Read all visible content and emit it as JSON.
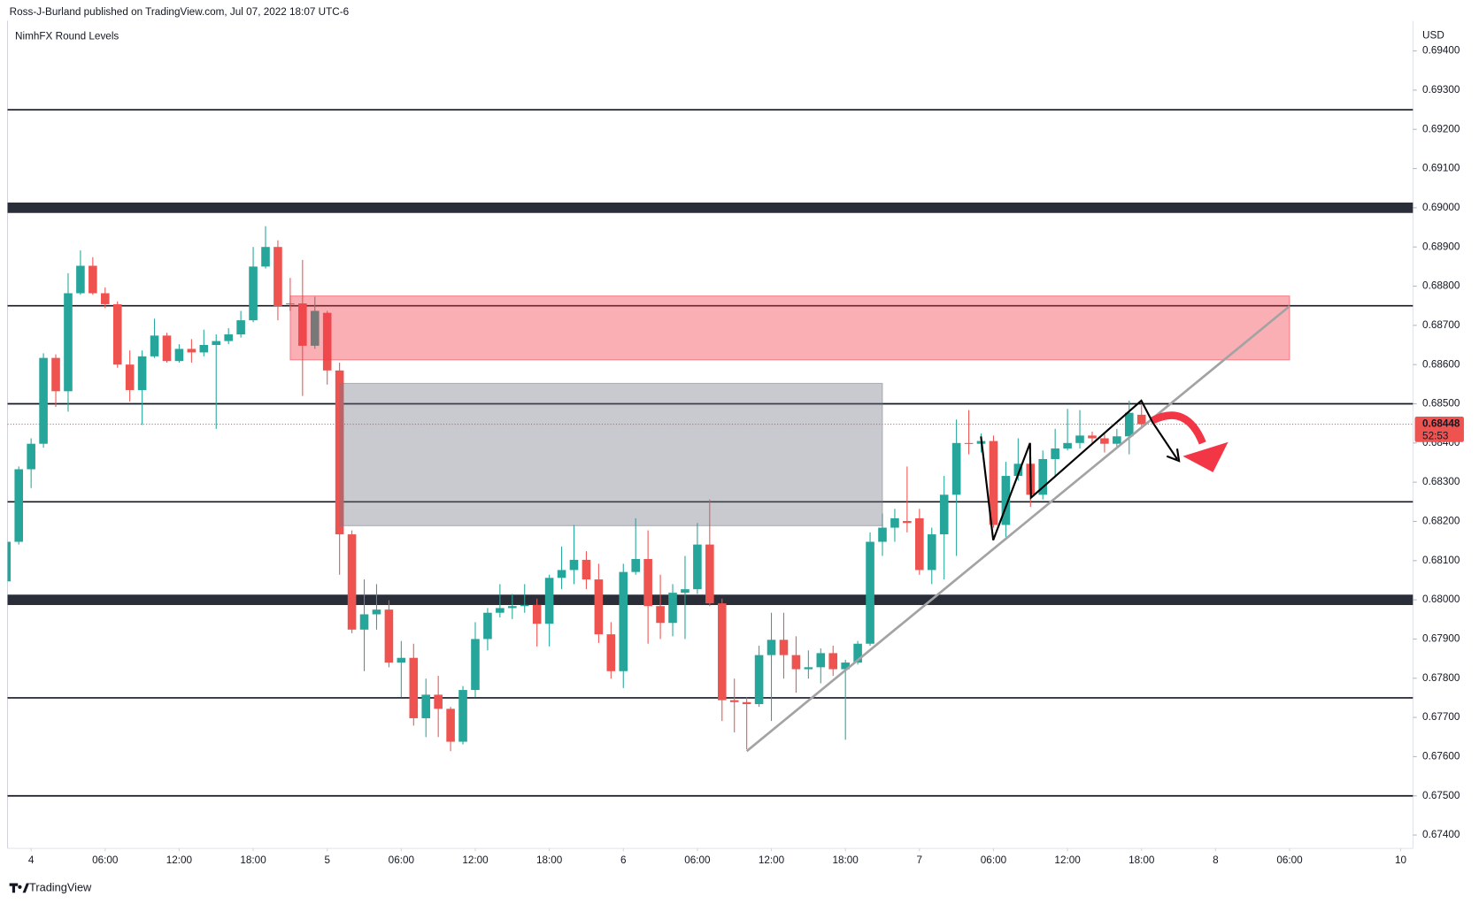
{
  "header": "Ross-J-Burland published on TradingView.com, Jul 07, 2022 18:07 UTC-6",
  "footer": "TradingView",
  "chart_data": {
    "type": "candlestick",
    "title": "NimhFX Round Levels",
    "y_axis_label": "USD",
    "xlim": [
      -1.91,
      112
    ],
    "ylim": [
      0.67366,
      0.69477
    ],
    "xticks": [
      {
        "value": 0,
        "label": "4"
      },
      {
        "value": 6,
        "label": "06:00"
      },
      {
        "value": 12,
        "label": "12:00"
      },
      {
        "value": 18,
        "label": "18:00"
      },
      {
        "value": 24,
        "label": "5"
      },
      {
        "value": 30,
        "label": "06:00"
      },
      {
        "value": 36,
        "label": "12:00"
      },
      {
        "value": 42,
        "label": "18:00"
      },
      {
        "value": 48,
        "label": "6"
      },
      {
        "value": 54,
        "label": "06:00"
      },
      {
        "value": 60,
        "label": "12:00"
      },
      {
        "value": 66,
        "label": "18:00"
      },
      {
        "value": 72,
        "label": "7"
      },
      {
        "value": 78,
        "label": "06:00"
      },
      {
        "value": 84,
        "label": "12:00"
      },
      {
        "value": 90,
        "label": "18:00"
      },
      {
        "value": 96,
        "label": "8"
      },
      {
        "value": 102,
        "label": "06:00"
      },
      {
        "value": 111,
        "label": "10"
      }
    ],
    "yticks": [
      {
        "value": 0.674,
        "label": "0.67400"
      },
      {
        "value": 0.675,
        "label": "0.67500"
      },
      {
        "value": 0.676,
        "label": "0.67600"
      },
      {
        "value": 0.677,
        "label": "0.67700"
      },
      {
        "value": 0.678,
        "label": "0.67800"
      },
      {
        "value": 0.679,
        "label": "0.67900"
      },
      {
        "value": 0.68,
        "label": "0.68000"
      },
      {
        "value": 0.681,
        "label": "0.68100"
      },
      {
        "value": 0.682,
        "label": "0.68200"
      },
      {
        "value": 0.683,
        "label": "0.68300"
      },
      {
        "value": 0.684,
        "label": "0.68400"
      },
      {
        "value": 0.685,
        "label": "0.68500"
      },
      {
        "value": 0.686,
        "label": "0.68600"
      },
      {
        "value": 0.687,
        "label": "0.68700"
      },
      {
        "value": 0.688,
        "label": "0.68800"
      },
      {
        "value": 0.689,
        "label": "0.68900"
      },
      {
        "value": 0.69,
        "label": "0.69000"
      },
      {
        "value": 0.691,
        "label": "0.69100"
      },
      {
        "value": 0.692,
        "label": "0.69200"
      },
      {
        "value": 0.693,
        "label": "0.69300"
      },
      {
        "value": 0.694,
        "label": "0.69400"
      }
    ],
    "up_color": "#26a69a",
    "down_color": "#ef5350",
    "series": {
      "x": [
        -2,
        -1,
        0,
        1,
        2,
        3,
        4,
        5,
        6,
        7,
        8,
        9,
        10,
        11,
        12,
        13,
        14,
        15,
        16,
        17,
        18,
        19,
        20,
        21,
        22,
        23,
        24,
        25,
        26,
        27,
        28,
        29,
        30,
        31,
        32,
        33,
        34,
        35,
        36,
        37,
        38,
        39,
        40,
        41,
        42,
        43,
        44,
        45,
        46,
        47,
        48,
        49,
        50,
        51,
        52,
        53,
        54,
        55,
        56,
        57,
        58,
        59,
        60,
        61,
        62,
        63,
        64,
        65,
        66,
        67,
        68,
        69,
        70,
        71,
        72,
        73,
        74,
        75,
        76,
        77,
        78,
        79,
        80,
        81,
        82,
        83,
        84,
        85,
        86,
        87,
        88,
        89,
        90
      ],
      "open": [
        0.68047,
        0.68148,
        0.68333,
        0.68398,
        0.68617,
        0.68532,
        0.68782,
        0.68852,
        0.68782,
        0.68754,
        0.686,
        0.68535,
        0.68621,
        0.68674,
        0.68609,
        0.6864,
        0.68631,
        0.6865,
        0.6866,
        0.68677,
        0.68713,
        0.6885,
        0.689,
        0.68756,
        0.68756,
        0.68648,
        0.68732,
        0.68585,
        0.68167,
        0.67924,
        0.67963,
        0.67975,
        0.6784,
        0.67852,
        0.67698,
        0.67758,
        0.67722,
        0.67638,
        0.6777,
        0.679,
        0.67967,
        0.67979,
        0.67984,
        0.67987,
        0.67939,
        0.68056,
        0.68076,
        0.68102,
        0.68052,
        0.67912,
        0.67818,
        0.68071,
        0.68104,
        0.67984,
        0.67941,
        0.68018,
        0.68027,
        0.68141,
        0.67991,
        0.67744,
        0.67739,
        0.67734,
        0.67859,
        0.67898,
        0.67859,
        0.67823,
        0.67828,
        0.67864,
        0.67823,
        0.6784,
        0.67888,
        0.68148,
        0.68184,
        0.68201,
        0.68208,
        0.68076,
        0.68167,
        0.68268,
        0.684,
        0.68398,
        0.68405,
        0.68191,
        0.68316,
        0.68347,
        0.68268,
        0.68359,
        0.68386,
        0.684,
        0.68419,
        0.68412,
        0.68398,
        0.68417,
        0.68472
      ],
      "high": [
        0.6816,
        0.6834,
        0.68412,
        0.68629,
        0.68626,
        0.68833,
        0.68891,
        0.68874,
        0.68797,
        0.68761,
        0.68636,
        0.68636,
        0.68717,
        0.68681,
        0.68652,
        0.68665,
        0.68689,
        0.68677,
        0.68693,
        0.68737,
        0.689,
        0.68953,
        0.68917,
        0.68821,
        0.68867,
        0.68773,
        0.68737,
        0.68605,
        0.68177,
        0.68052,
        0.6804,
        0.67999,
        0.67895,
        0.67888,
        0.67799,
        0.67806,
        0.67727,
        0.6778,
        0.67943,
        0.67979,
        0.6804,
        0.68015,
        0.6804,
        0.68003,
        0.68064,
        0.68136,
        0.68191,
        0.68124,
        0.68092,
        0.67943,
        0.68092,
        0.68208,
        0.68177,
        0.68064,
        0.6804,
        0.68112,
        0.68196,
        0.68256,
        0.68003,
        0.67799,
        0.67751,
        0.67883,
        0.67967,
        0.67967,
        0.67907,
        0.67871,
        0.67876,
        0.67883,
        0.67847,
        0.67895,
        0.68172,
        0.6822,
        0.68232,
        0.6834,
        0.68232,
        0.68184,
        0.68316,
        0.6846,
        0.68484,
        0.68424,
        0.68419,
        0.68352,
        0.68412,
        0.684,
        0.68381,
        0.68436,
        0.68487,
        0.68484,
        0.68429,
        0.68424,
        0.68436,
        0.68508,
        0.68496
      ],
      "low": [
        0.6804,
        0.68141,
        0.68285,
        0.68388,
        0.68492,
        0.6848,
        0.68778,
        0.68778,
        0.68744,
        0.68592,
        0.68506,
        0.68446,
        0.68617,
        0.68605,
        0.68605,
        0.68605,
        0.68621,
        0.68436,
        0.68652,
        0.68669,
        0.68708,
        0.68845,
        0.68713,
        0.68737,
        0.6852,
        0.6864,
        0.68549,
        0.68064,
        0.67915,
        0.67818,
        0.67924,
        0.67828,
        0.67751,
        0.67679,
        0.6765,
        0.6765,
        0.67614,
        0.67631,
        0.67751,
        0.67871,
        0.67955,
        0.67951,
        0.67967,
        0.67881,
        0.67881,
        0.68027,
        0.6804,
        0.68027,
        0.6789,
        0.67799,
        0.67775,
        0.68064,
        0.67888,
        0.679,
        0.67907,
        0.679,
        0.68015,
        0.67984,
        0.67691,
        0.67662,
        0.67619,
        0.67727,
        0.67691,
        0.67799,
        0.67763,
        0.67799,
        0.67787,
        0.67806,
        0.67643,
        0.67835,
        0.67883,
        0.68112,
        0.68148,
        0.68172,
        0.68064,
        0.6804,
        0.68052,
        0.68112,
        0.68371,
        0.68376,
        0.68184,
        0.6816,
        0.68304,
        0.68237,
        0.68256,
        0.68316,
        0.68381,
        0.68386,
        0.684,
        0.68376,
        0.68388,
        0.68371,
        0.68436
      ],
      "close": [
        0.68148,
        0.68333,
        0.68398,
        0.68617,
        0.68532,
        0.68782,
        0.68852,
        0.68782,
        0.68754,
        0.686,
        0.68535,
        0.68621,
        0.68674,
        0.68609,
        0.6864,
        0.68631,
        0.6865,
        0.6866,
        0.68677,
        0.68713,
        0.6885,
        0.689,
        0.68749,
        0.68754,
        0.68648,
        0.68737,
        0.68585,
        0.68167,
        0.67924,
        0.67963,
        0.67975,
        0.6784,
        0.67852,
        0.67698,
        0.67758,
        0.67722,
        0.67638,
        0.6777,
        0.679,
        0.67967,
        0.67979,
        0.67984,
        0.67987,
        0.67939,
        0.68056,
        0.68076,
        0.68102,
        0.68052,
        0.67912,
        0.67818,
        0.68071,
        0.68104,
        0.67984,
        0.67941,
        0.68018,
        0.68027,
        0.68141,
        0.67991,
        0.67744,
        0.67739,
        0.67734,
        0.67859,
        0.67898,
        0.67859,
        0.67823,
        0.67828,
        0.67864,
        0.67823,
        0.6784,
        0.67888,
        0.68148,
        0.68184,
        0.68208,
        0.68196,
        0.68076,
        0.68167,
        0.68268,
        0.684,
        0.68398,
        0.68405,
        0.68191,
        0.68316,
        0.68347,
        0.68268,
        0.68359,
        0.68386,
        0.684,
        0.68419,
        0.68412,
        0.68398,
        0.68417,
        0.68477,
        0.68448
      ]
    },
    "levels": [
      0.6925,
      0.6875,
      0.685,
      0.6825,
      0.6775,
      0.675
    ],
    "major_levels": [
      0.69,
      0.68
    ],
    "zones": [
      {
        "x": [
          21,
          102
        ],
        "y": [
          0.68612,
          0.68775
        ],
        "color": "#f23645",
        "opacity": 0.4
      },
      {
        "x": [
          25,
          69
        ],
        "y": [
          0.68189,
          0.68552
        ],
        "color": "#787b86",
        "opacity": 0.4
      }
    ],
    "trendline": {
      "x": [
        58,
        102
      ],
      "y": [
        0.67614,
        0.68749
      ],
      "color": "#a3a3a3"
    },
    "last_price": 0.68448,
    "countdown": "52:53"
  }
}
